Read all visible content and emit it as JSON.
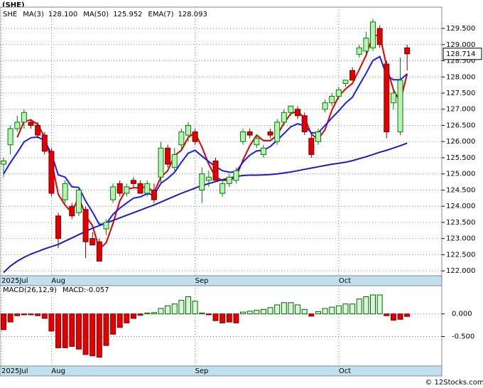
{
  "chart_data": {
    "type": "candlestick",
    "title": "(SHE)",
    "symbol": "SHE",
    "last_price": 128.714,
    "last_price_label": "128.714",
    "footer": "© 12Stocks.com",
    "categories": [
      "2025Jul",
      null,
      null,
      null,
      null,
      null,
      null,
      "Aug",
      null,
      null,
      null,
      null,
      null,
      null,
      null,
      null,
      null,
      null,
      null,
      null,
      null,
      null,
      null,
      null,
      null,
      null,
      null,
      null,
      "Sep",
      null,
      null,
      null,
      null,
      null,
      null,
      null,
      null,
      null,
      null,
      null,
      null,
      null,
      null,
      null,
      null,
      null,
      null,
      null,
      null,
      "Oct",
      null,
      null,
      null,
      null,
      null,
      null,
      null,
      null,
      null,
      null
    ],
    "open": [
      125.3,
      125.9,
      126.4,
      126.6,
      126.6,
      126.5,
      126.2,
      125.7,
      123.7,
      124.2,
      124.0,
      123.8,
      123.9,
      123.0,
      122.9,
      123.3,
      124.2,
      124.7,
      124.4,
      124.8,
      124.7,
      124.4,
      124.5,
      124.9,
      125.8,
      125.2,
      125.9,
      126.2,
      126.3,
      124.5,
      124.8,
      125.4,
      124.4,
      124.7,
      124.8,
      126.0,
      126.3,
      125.9,
      125.6,
      126.3,
      126.0,
      126.6,
      126.9,
      127.0,
      126.8,
      126.1,
      126.0,
      127.0,
      127.2,
      127.4,
      127.8,
      128.2,
      128.7,
      128.8,
      128.9,
      129.5,
      128.4,
      127.2,
      126.3,
      128.9
    ],
    "high": [
      125.5,
      126.5,
      126.8,
      127.0,
      126.7,
      126.6,
      126.3,
      125.8,
      123.8,
      124.8,
      124.1,
      124.6,
      124.0,
      123.2,
      123.0,
      123.6,
      124.7,
      124.8,
      124.7,
      124.9,
      124.8,
      124.8,
      124.7,
      126.0,
      125.9,
      125.8,
      126.4,
      126.6,
      126.4,
      125.2,
      125.1,
      125.5,
      124.8,
      125.0,
      125.2,
      126.4,
      126.4,
      126.2,
      125.9,
      126.4,
      126.7,
      127.0,
      127.1,
      127.1,
      126.9,
      126.2,
      126.4,
      127.3,
      127.5,
      127.7,
      127.9,
      128.3,
      129.0,
      129.4,
      129.8,
      129.6,
      128.5,
      127.6,
      128.6,
      129.0
    ],
    "low": [
      124.9,
      125.6,
      126.3,
      126.4,
      126.4,
      126.1,
      125.6,
      124.3,
      122.7,
      124.1,
      123.6,
      123.7,
      122.4,
      122.8,
      122.3,
      123.1,
      124.1,
      124.3,
      124.3,
      124.6,
      124.4,
      124.3,
      124.1,
      124.7,
      125.2,
      125.1,
      125.7,
      126.0,
      125.9,
      124.1,
      124.6,
      124.8,
      124.3,
      124.6,
      124.7,
      125.9,
      126.1,
      125.8,
      125.5,
      126.1,
      125.9,
      126.5,
      126.8,
      126.7,
      126.2,
      125.5,
      125.9,
      126.9,
      127.1,
      127.3,
      127.7,
      127.9,
      128.6,
      128.7,
      128.8,
      128.9,
      126.1,
      127.0,
      126.2,
      128.2
    ],
    "close": [
      125.4,
      126.4,
      126.6,
      126.9,
      126.5,
      126.2,
      125.7,
      124.4,
      123.0,
      124.7,
      123.7,
      124.5,
      122.9,
      122.8,
      122.3,
      123.5,
      124.6,
      124.4,
      124.6,
      124.7,
      124.4,
      124.7,
      124.2,
      125.8,
      125.3,
      125.6,
      126.3,
      126.5,
      126.0,
      125.0,
      124.9,
      124.8,
      124.7,
      124.9,
      125.1,
      126.3,
      126.2,
      126.1,
      125.8,
      126.2,
      126.6,
      126.9,
      127.1,
      126.8,
      126.3,
      125.6,
      126.3,
      127.2,
      127.4,
      127.6,
      127.9,
      127.9,
      128.9,
      129.2,
      129.7,
      129.0,
      126.3,
      127.5,
      127.9,
      128.714
    ],
    "up_color": "#008000",
    "up_fill": "#b8f0b8",
    "down_color": "#e00000",
    "series": [
      {
        "name": "MA(3)",
        "legend_value": "128.100",
        "color": "#e00000",
        "values": [
          null,
          null,
          126.13,
          126.63,
          126.67,
          126.53,
          126.13,
          125.43,
          124.37,
          124.03,
          123.8,
          124.3,
          123.7,
          123.4,
          122.67,
          122.87,
          123.47,
          124.17,
          124.53,
          124.57,
          124.57,
          124.6,
          124.43,
          124.9,
          125.1,
          125.57,
          125.73,
          126.13,
          126.27,
          125.83,
          125.3,
          124.9,
          124.8,
          124.8,
          124.9,
          125.43,
          125.87,
          126.2,
          126.03,
          126.03,
          126.2,
          126.57,
          126.87,
          126.93,
          126.73,
          126.23,
          126.07,
          126.37,
          126.97,
          127.4,
          127.63,
          127.8,
          128.23,
          128.67,
          129.27,
          129.3,
          128.33,
          127.6,
          127.23,
          128.1
        ]
      },
      {
        "name": "MA(50)",
        "legend_value": "125.952",
        "color": "#1c1cc8",
        "values": [
          121.95,
          122.15,
          122.3,
          122.42,
          122.52,
          122.6,
          122.68,
          122.75,
          122.82,
          122.92,
          123.02,
          123.12,
          123.22,
          123.32,
          123.4,
          123.48,
          123.56,
          123.64,
          123.72,
          123.8,
          123.88,
          123.96,
          124.04,
          124.13,
          124.22,
          124.31,
          124.4,
          124.48,
          124.56,
          124.64,
          124.7,
          124.76,
          124.82,
          124.87,
          124.92,
          124.95,
          124.96,
          124.96,
          124.97,
          124.98,
          125.0,
          125.03,
          125.06,
          125.1,
          125.14,
          125.18,
          125.22,
          125.26,
          125.3,
          125.33,
          125.36,
          125.41,
          125.47,
          125.53,
          125.6,
          125.67,
          125.73,
          125.8,
          125.87,
          125.952
        ]
      },
      {
        "name": "EMA(7)",
        "legend_value": "128.093",
        "color": "#1a1aff",
        "values": [
          125.0,
          125.35,
          125.66,
          125.99,
          126.12,
          126.14,
          126.03,
          125.62,
          124.97,
          124.9,
          124.6,
          124.58,
          124.16,
          123.82,
          123.44,
          123.46,
          123.75,
          123.94,
          124.1,
          124.25,
          124.29,
          124.39,
          124.35,
          124.71,
          124.86,
          125.05,
          125.36,
          125.64,
          125.73,
          125.55,
          125.38,
          125.23,
          125.1,
          125.05,
          125.06,
          125.37,
          125.58,
          125.71,
          125.73,
          125.85,
          126.04,
          126.25,
          126.46,
          126.55,
          126.49,
          126.27,
          126.27,
          126.5,
          126.73,
          126.95,
          127.19,
          127.37,
          127.75,
          128.11,
          128.51,
          128.63,
          128.05,
          127.91,
          127.91,
          128.093
        ]
      }
    ],
    "ylim": [
      121.85,
      130.16
    ],
    "yticks": [
      {
        "value": 122,
        "label": "122.000"
      },
      {
        "value": 122.5,
        "label": "122.500"
      },
      {
        "value": 123,
        "label": "123.000"
      },
      {
        "value": 123.5,
        "label": "123.500"
      },
      {
        "value": 124,
        "label": "124.000"
      },
      {
        "value": 124.5,
        "label": "124.500"
      },
      {
        "value": 125,
        "label": "125.000"
      },
      {
        "value": 125.5,
        "label": "125.500"
      },
      {
        "value": 126,
        "label": "126.000"
      },
      {
        "value": 126.5,
        "label": "126.500"
      },
      {
        "value": 127,
        "label": "127.000"
      },
      {
        "value": 127.5,
        "label": "127.500"
      },
      {
        "value": 128,
        "label": "128.000"
      },
      {
        "value": 128.5,
        "label": "128.500"
      },
      {
        "value": 129,
        "label": "129.000"
      },
      {
        "value": 129.5,
        "label": "129.500"
      }
    ],
    "grid": true,
    "macd": {
      "title": "MACD(26,12,9)",
      "legend": "MACD:-0.057",
      "values": [
        -0.35,
        -0.18,
        -0.04,
        -0.02,
        -0.02,
        -0.04,
        -0.1,
        -0.38,
        -0.75,
        -0.75,
        -0.72,
        -0.78,
        -0.9,
        -0.93,
        -0.96,
        -0.7,
        -0.45,
        -0.3,
        -0.2,
        -0.1,
        -0.03,
        0.02,
        0.03,
        0.12,
        0.18,
        0.22,
        0.3,
        0.38,
        0.28,
        0.02,
        -0.02,
        -0.15,
        -0.2,
        -0.18,
        -0.2,
        0.04,
        0.06,
        0.08,
        0.1,
        0.14,
        0.2,
        0.25,
        0.25,
        0.2,
        0.1,
        -0.05,
        0.05,
        0.12,
        0.15,
        0.18,
        0.22,
        0.22,
        0.33,
        0.38,
        0.42,
        0.42,
        -0.04,
        -0.14,
        -0.12,
        -0.057
      ],
      "pos_color": "#006400",
      "pos_fill": "#d8f5d8",
      "neg_color": "#e00000",
      "ylim": [
        -1.153,
        0.625
      ],
      "yticks": [
        {
          "value": 0,
          "label": "0.000"
        },
        {
          "value": -0.5,
          "label": "-0.500"
        }
      ]
    }
  }
}
